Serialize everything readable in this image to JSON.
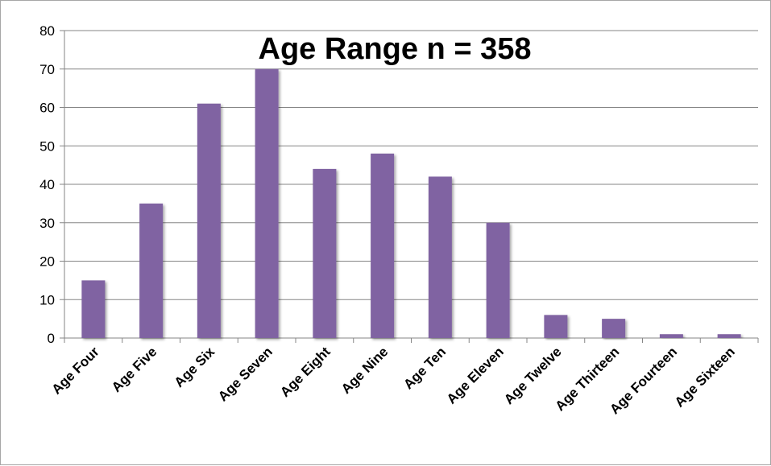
{
  "chart_data": {
    "type": "bar",
    "title": "Age Range n = 358",
    "xlabel": "",
    "ylabel": "",
    "categories": [
      "Age Four",
      "Age Five",
      "Age Six",
      "Age Seven",
      "Age Eight",
      "Age Nine",
      "Age Ten",
      "Age Eleven",
      "Age Twelve",
      "Age Thirteen",
      "Age Fourteen",
      "Age Sixteen"
    ],
    "values": [
      15,
      35,
      61,
      70,
      44,
      48,
      42,
      30,
      6,
      5,
      1,
      1
    ],
    "ylim": [
      0,
      80
    ],
    "yticks": [
      0,
      10,
      20,
      30,
      40,
      50,
      60,
      70,
      80
    ],
    "grid": true,
    "legend": "none",
    "bar_color": "#8064A2"
  }
}
